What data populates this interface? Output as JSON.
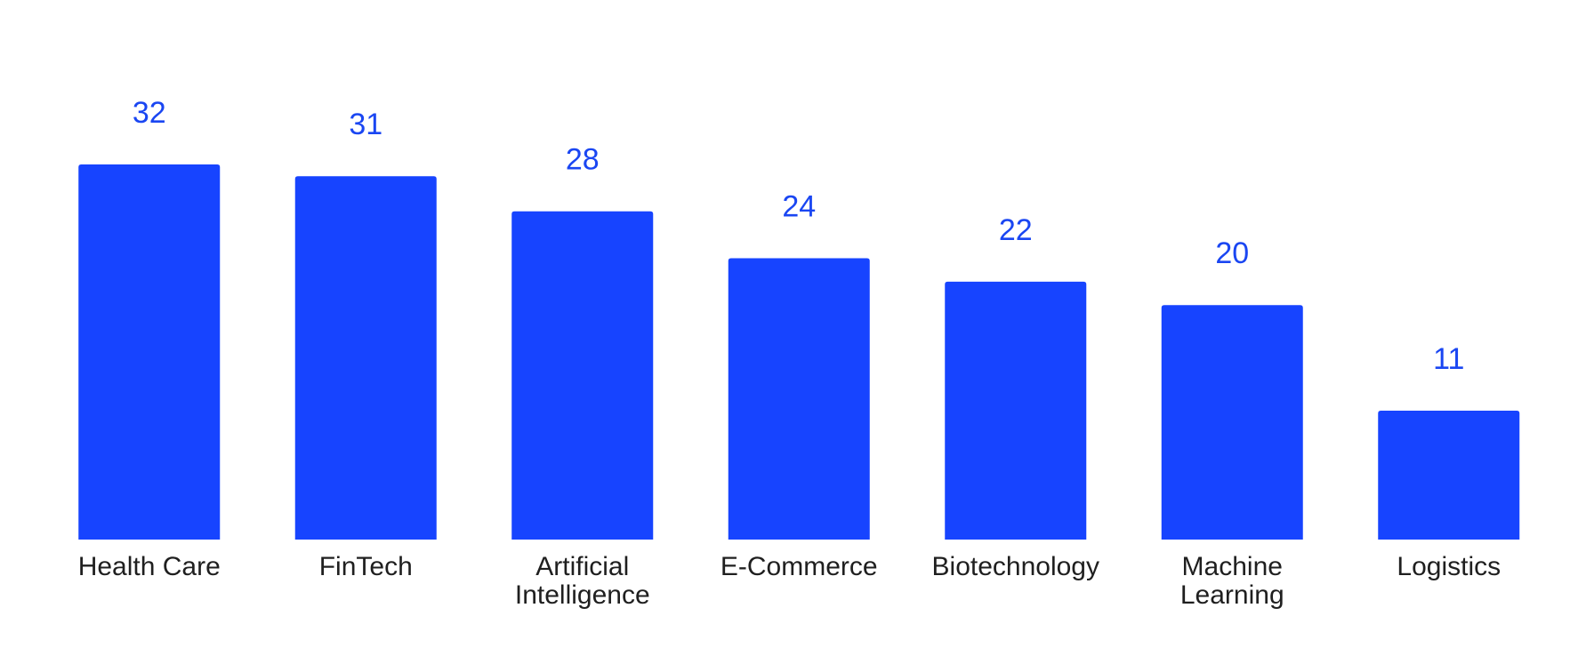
{
  "chart_data": {
    "type": "bar",
    "categories": [
      "Health Care",
      "FinTech",
      "Artificial\nIntelligence",
      "E-Commerce",
      "Biotechnology",
      "Machine\nLearning",
      "Logistics"
    ],
    "values": [
      32,
      31,
      28,
      24,
      22,
      20,
      11
    ],
    "color": "#1744ff",
    "label_color": "#1a46f2"
  }
}
